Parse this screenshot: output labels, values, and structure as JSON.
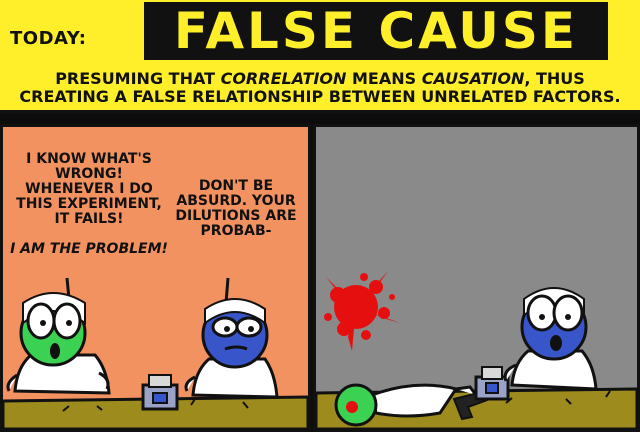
{
  "header": {
    "today_label": "TODAY:",
    "title": "FALSE CAUSE",
    "subtitle_line1_part1": "PRESUMING THAT ",
    "subtitle_line1_em1": "CORRELATION",
    "subtitle_line1_part2": " MEANS ",
    "subtitle_line1_em2": "CAUSATION",
    "subtitle_line1_part3": ", THUS",
    "subtitle_line2": "CREATING A FALSE RELATIONSHIP BETWEEN UNRELATED FACTORS."
  },
  "panel_left": {
    "speech_left": "I KNOW WHAT'S WRONG! WHENEVER I DO THIS EXPERIMENT, IT FAILS!",
    "speech_left_emph": "I AM THE PROBLEM!",
    "speech_right": "DON'T BE ABSURD. YOUR DILUTIONS ARE PROBAB-"
  },
  "colors": {
    "banner": "#ffef2a",
    "left_panel": "#f39261",
    "right_panel": "#8a8a8a",
    "green_character": "#3bd152",
    "blue_character": "#3855c9",
    "blood": "#e60f0f",
    "table": "#9d8b1e"
  }
}
